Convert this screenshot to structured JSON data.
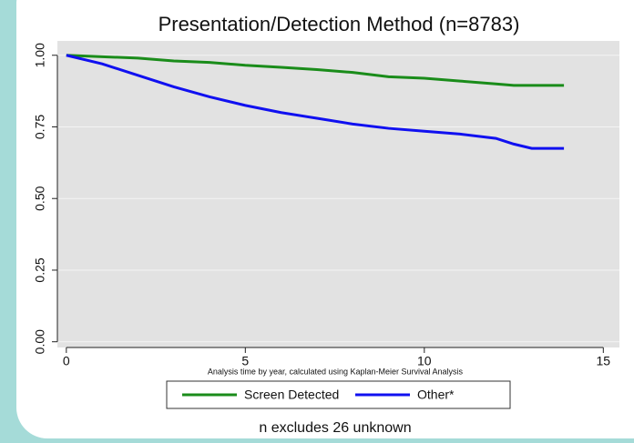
{
  "chart_data": {
    "type": "line",
    "title": "Presentation/Detection Method (n=8783)",
    "x_label": "Analysis time by year, calculated using Kaplan-Meier Survival Analysis",
    "note": "n excludes 26 unknown",
    "x": [
      0,
      1,
      2,
      3,
      4,
      5,
      6,
      7,
      8,
      9,
      10,
      11,
      12,
      12.5,
      13,
      13.9
    ],
    "series": [
      {
        "name": "Screen Detected",
        "color": "#1a8c1a",
        "values": [
          1,
          0.995,
          0.99,
          0.98,
          0.975,
          0.965,
          0.958,
          0.95,
          0.94,
          0.925,
          0.92,
          0.91,
          0.9,
          0.895,
          0.895,
          0.895
        ]
      },
      {
        "name": "Other*",
        "color": "#1010f0",
        "values": [
          1,
          0.97,
          0.93,
          0.89,
          0.855,
          0.825,
          0.8,
          0.78,
          0.76,
          0.745,
          0.735,
          0.725,
          0.71,
          0.69,
          0.675,
          0.675
        ]
      }
    ],
    "xlim": [
      -0.25,
      15.45
    ],
    "ylim": [
      -0.02,
      1.05
    ],
    "xticks": [
      0,
      5,
      10,
      15
    ],
    "yticks": [
      {
        "value": 0,
        "label": "0.00"
      },
      0.25,
      {
        "value": 0.5,
        "label": "0.50"
      },
      0.75,
      {
        "value": 1,
        "label": "1.00"
      }
    ],
    "grid": true,
    "legend": "bottom"
  }
}
